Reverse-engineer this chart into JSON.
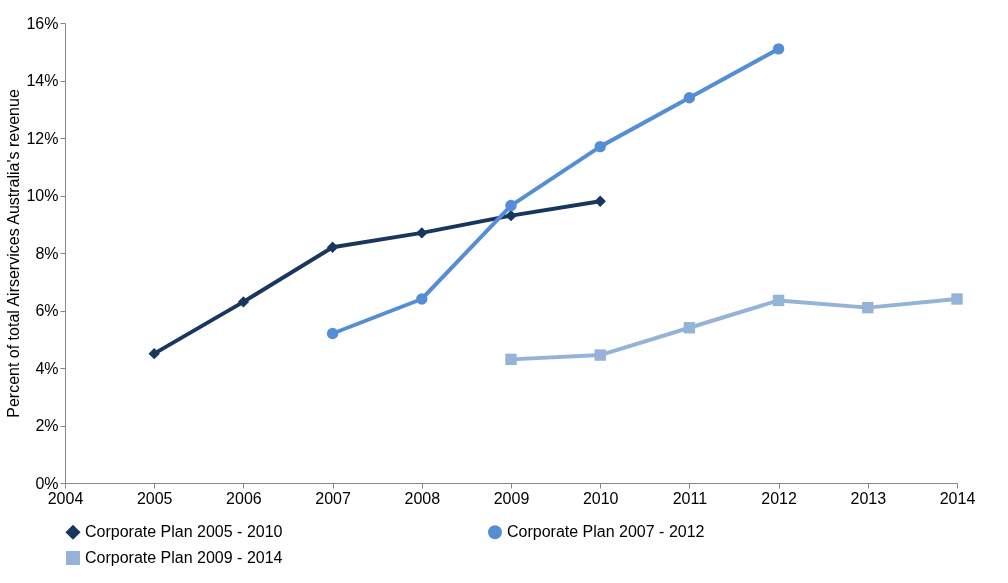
{
  "chart_data": {
    "type": "line",
    "ylabel": "Percent of  total Airservices Australia's revenue",
    "xlim": [
      2004,
      2014
    ],
    "xticks": [
      2004,
      2005,
      2006,
      2007,
      2008,
      2009,
      2010,
      2011,
      2012,
      2013,
      2014
    ],
    "ylim": [
      0,
      16
    ],
    "yticks": [
      {
        "value": 0,
        "label": "0%"
      },
      {
        "value": 2,
        "label": "2%"
      },
      {
        "value": 4,
        "label": "4%"
      },
      {
        "value": 6,
        "label": "6%"
      },
      {
        "value": 8,
        "label": "8%"
      },
      {
        "value": 10,
        "label": "10%"
      },
      {
        "value": 12,
        "label": "12%"
      },
      {
        "value": 14,
        "label": "14%"
      },
      {
        "value": 16,
        "label": "16%"
      }
    ],
    "grid": false,
    "legend": "bottom",
    "series": [
      {
        "name": "Corporate Plan 2005 - 2010",
        "color": "#17375e",
        "marker": "diamond",
        "x": [
          2005,
          2006,
          2007,
          2008,
          2009,
          2010
        ],
        "values": [
          4.5,
          6.3,
          8.2,
          8.7,
          9.3,
          9.8
        ]
      },
      {
        "name": "Corporate Plan 2007 - 2012",
        "color": "#558ed5",
        "marker": "circle",
        "x": [
          2007,
          2008,
          2009,
          2010,
          2011,
          2012
        ],
        "values": [
          5.2,
          6.4,
          9.65,
          11.7,
          13.4,
          15.1
        ]
      },
      {
        "name": "Corporate Plan 2009 - 2014",
        "color": "#95b3d7",
        "marker": "square",
        "x": [
          2009,
          2010,
          2011,
          2012,
          2013,
          2014
        ],
        "values": [
          4.3,
          4.45,
          5.4,
          6.35,
          6.1,
          6.4
        ]
      }
    ]
  }
}
